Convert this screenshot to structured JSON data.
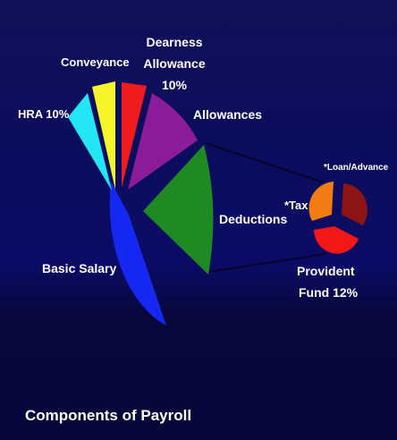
{
  "chart_data": [
    {
      "type": "pie",
      "title": "Components of Payroll",
      "slices": [
        {
          "label": "Basic Salary",
          "color": "#1528f2",
          "exploded": true
        },
        {
          "label": "HRA 10%",
          "color": "#22e6f5",
          "exploded": true
        },
        {
          "label": "Conveyance",
          "color": "#f5f52a",
          "exploded": true
        },
        {
          "label": "Dearness Allowance 10%",
          "color": "#ee1c1c",
          "exploded": true
        },
        {
          "label": "Allowances",
          "color": "#8a1c9a",
          "exploded": true
        },
        {
          "label": "Deductions",
          "color": "#1f8a24",
          "exploded": true
        }
      ]
    },
    {
      "type": "pie",
      "title": "",
      "breakdown_of": "Deductions",
      "slices": [
        {
          "label": "*Tax",
          "color": "#f27b14"
        },
        {
          "label": "*Loan/Advance",
          "color": "#8c1414"
        },
        {
          "label": "Provident Fund 12%",
          "color": "#f21818"
        }
      ]
    }
  ],
  "labels": {
    "basic_salary": "Basic Salary",
    "hra": "HRA 10%",
    "conveyance": "Conveyance",
    "dearness_line1": "Dearness",
    "dearness_line2": "Allowance",
    "dearness_line3": "10%",
    "allowances": "Allowances",
    "deductions": "Deductions",
    "tax": "*Tax",
    "loan": "*Loan/Advance",
    "pf_line1": "Provident",
    "pf_line2": "Fund 12%"
  },
  "title": "Components of Payroll"
}
